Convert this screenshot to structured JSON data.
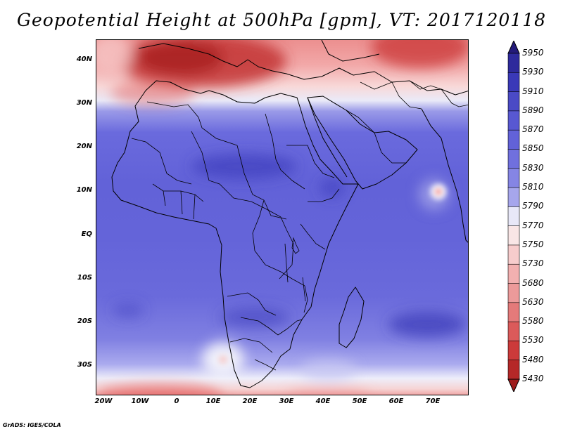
{
  "title": "Geopotential Height at 500hPa [gpm], VT: 2017120118",
  "credit": "GrADS: IGES/COLA",
  "chart_data": {
    "type": "heatmap",
    "variable": "Geopotential height at 500 hPa",
    "units": "gpm",
    "valid_time": "2017120118",
    "lon_range": [
      -22,
      80
    ],
    "lat_range": [
      -37,
      45
    ],
    "x_ticks": [
      {
        "value": -20,
        "label": "20W"
      },
      {
        "value": -10,
        "label": "10W"
      },
      {
        "value": 0,
        "label": "0"
      },
      {
        "value": 10,
        "label": "10E"
      },
      {
        "value": 20,
        "label": "20E"
      },
      {
        "value": 30,
        "label": "30E"
      },
      {
        "value": 40,
        "label": "40E"
      },
      {
        "value": 50,
        "label": "50E"
      },
      {
        "value": 60,
        "label": "60E"
      },
      {
        "value": 70,
        "label": "70E"
      }
    ],
    "y_ticks": [
      {
        "value": 40,
        "label": "40N"
      },
      {
        "value": 30,
        "label": "30N"
      },
      {
        "value": 20,
        "label": "20N"
      },
      {
        "value": 10,
        "label": "10N"
      },
      {
        "value": 0,
        "label": "EQ"
      },
      {
        "value": -10,
        "label": "10S"
      },
      {
        "value": -20,
        "label": "20S"
      },
      {
        "value": -30,
        "label": "30S"
      }
    ],
    "colorbar_levels": [
      5950,
      5930,
      5910,
      5890,
      5870,
      5850,
      5830,
      5810,
      5790,
      5770,
      5750,
      5730,
      5680,
      5630,
      5580,
      5530,
      5480,
      5430
    ],
    "colorbar_colors": [
      "#231a7a",
      "#2e2a9c",
      "#3a39b8",
      "#4a4ac6",
      "#5858d2",
      "#6262d8",
      "#7070de",
      "#8585e4",
      "#a6a6ec",
      "#e8e8f8",
      "#f9e6e6",
      "#f7cccc",
      "#f2b0b0",
      "#ec9a9a",
      "#e47a7a",
      "#db5a5a",
      "#cc3a3a",
      "#b52828",
      "#9e1c1c"
    ]
  }
}
